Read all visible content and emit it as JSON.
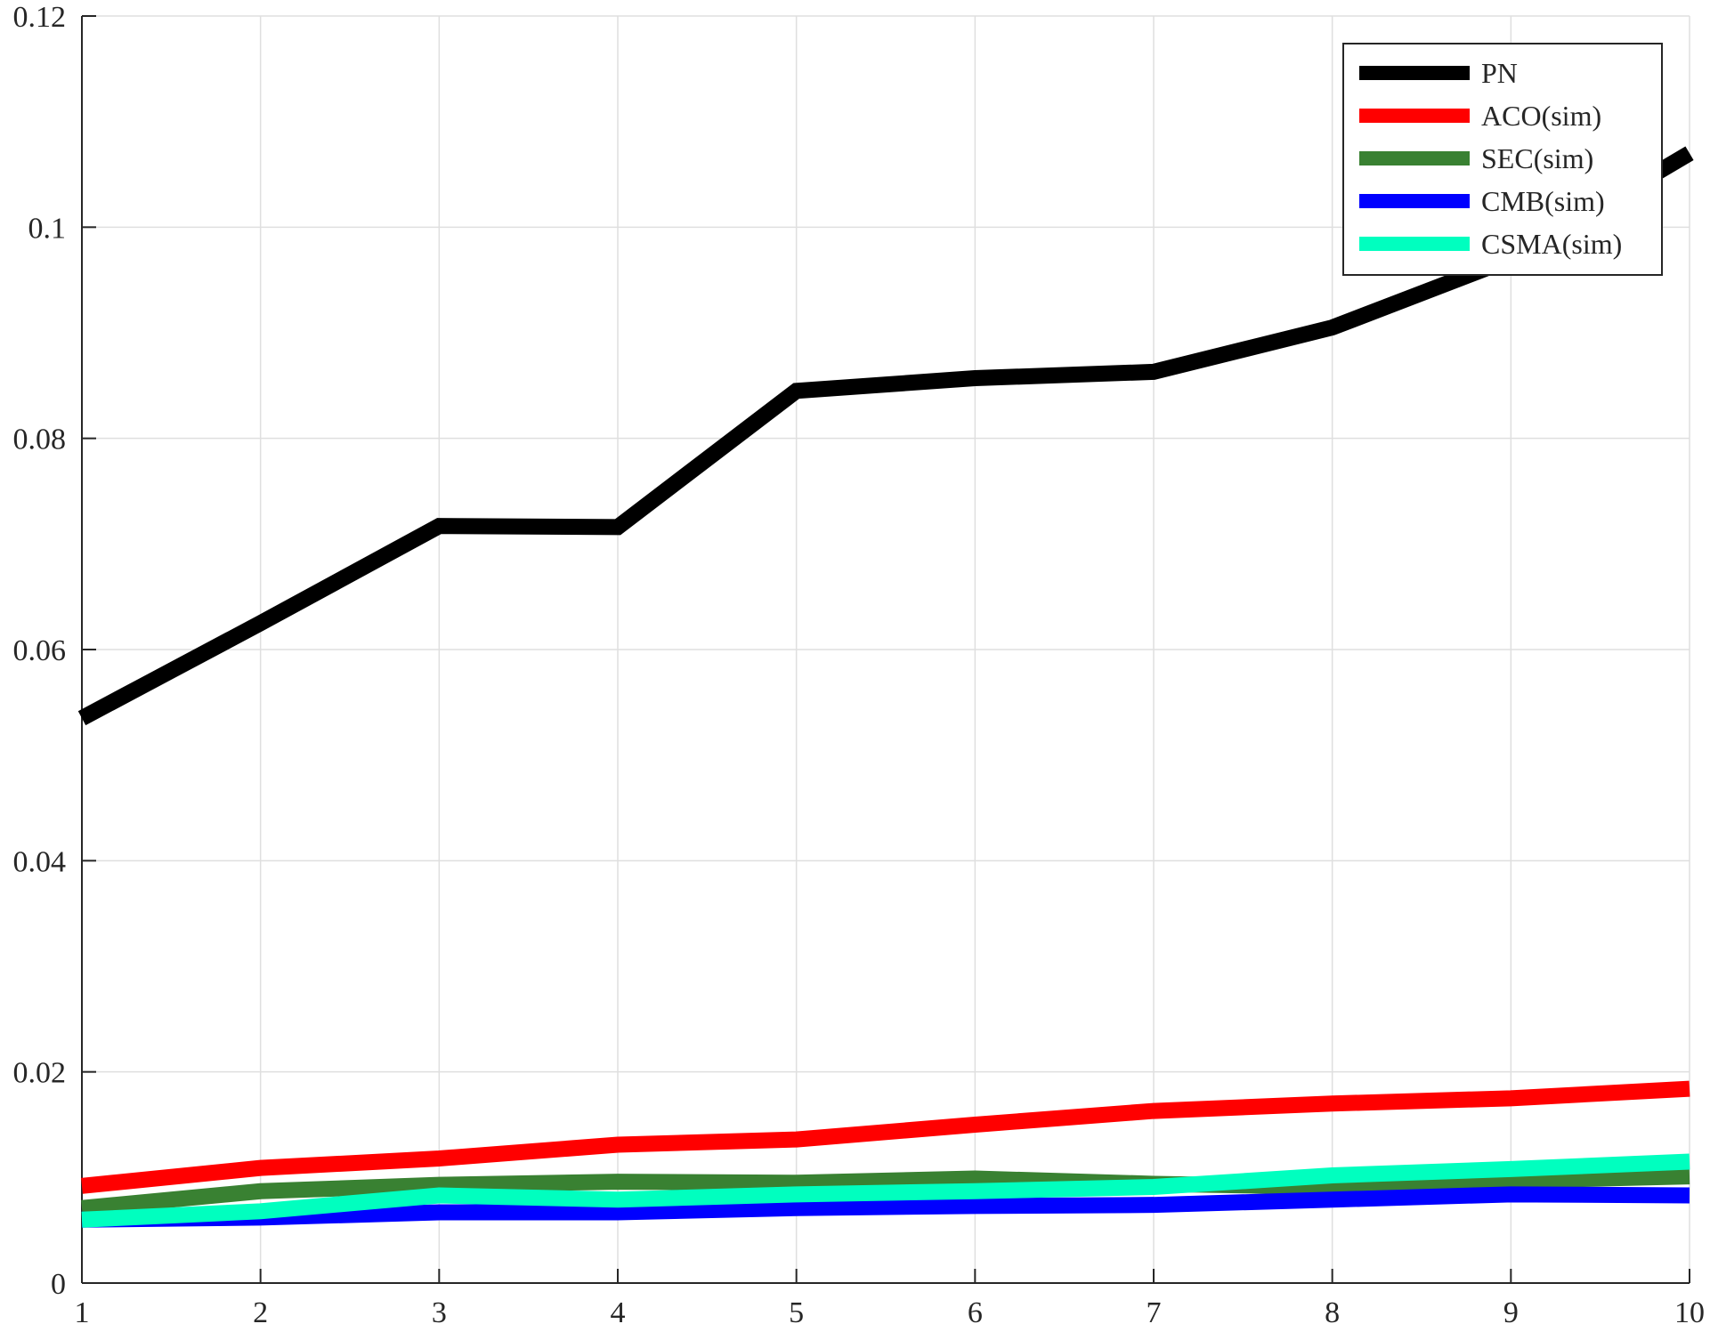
{
  "chart_data": {
    "type": "line",
    "title": "",
    "xlabel": "",
    "ylabel": "",
    "x": [
      1,
      2,
      3,
      4,
      5,
      6,
      7,
      8,
      9,
      10
    ],
    "xlim": [
      1,
      10
    ],
    "ylim": [
      0,
      0.12
    ],
    "xticks": [
      "1",
      "2",
      "3",
      "4",
      "5",
      "6",
      "7",
      "8",
      "9",
      "10"
    ],
    "yticks": [
      "0",
      "0.02",
      "0.04",
      "0.06",
      "0.08",
      "0.1",
      "0.12"
    ],
    "grid": true,
    "legend_position": "top-right",
    "series": [
      {
        "name": "PN",
        "color": "#000000",
        "values": [
          0.0535,
          0.0625,
          0.0717,
          0.0716,
          0.0845,
          0.0857,
          0.0863,
          0.0905,
          0.097,
          0.107
        ]
      },
      {
        "name": "ACO(sim)",
        "color": "#ff0000",
        "values": [
          0.0092,
          0.0109,
          0.0118,
          0.0131,
          0.0136,
          0.015,
          0.0163,
          0.017,
          0.0175,
          0.0184
        ]
      },
      {
        "name": "SEC(sim)",
        "color": "#398132",
        "values": [
          0.0071,
          0.0087,
          0.0093,
          0.0096,
          0.0095,
          0.0099,
          0.0094,
          0.0091,
          0.0097,
          0.0101
        ]
      },
      {
        "name": "CMB(sim)",
        "color": "#0000ff",
        "values": [
          0.006,
          0.0062,
          0.0067,
          0.0067,
          0.0071,
          0.0073,
          0.0074,
          0.0079,
          0.0084,
          0.0083
        ]
      },
      {
        "name": "CSMA(sim)",
        "color": "#00ffbf",
        "values": [
          0.006,
          0.0068,
          0.0083,
          0.0079,
          0.0084,
          0.0087,
          0.0091,
          0.0102,
          0.0108,
          0.0115
        ]
      }
    ]
  }
}
